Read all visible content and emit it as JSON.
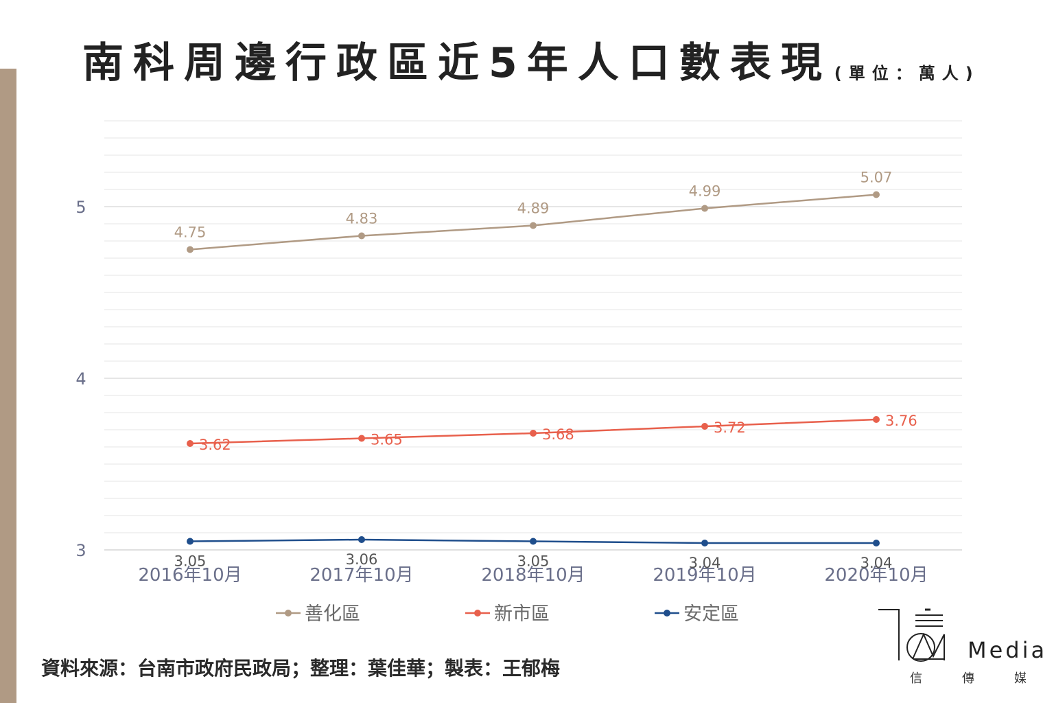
{
  "title": {
    "main": "南科周邊行政區近5年人口數表現",
    "unit": "(單位：萬人)"
  },
  "source": "資料來源：台南市政府民政局；整理：葉佳華；製表：王郁梅",
  "logo": {
    "text": "Media",
    "caption": [
      "信",
      "傳",
      "媒"
    ]
  },
  "colors": {
    "accent_bar": "#b09a84",
    "series": [
      "#b09a84",
      "#e8604c",
      "#1f4e8c"
    ],
    "grid": "#e6e6e6",
    "axis_text": "#6a6f8a"
  },
  "chart_data": {
    "type": "line",
    "categories": [
      "2016年10月",
      "2017年10月",
      "2018年10月",
      "2019年10月",
      "2020年10月"
    ],
    "series": [
      {
        "name": "善化區",
        "values": [
          4.75,
          4.83,
          4.89,
          4.99,
          5.07
        ]
      },
      {
        "name": "新市區",
        "values": [
          3.62,
          3.65,
          3.68,
          3.72,
          3.76
        ]
      },
      {
        "name": "安定區",
        "values": [
          3.05,
          3.06,
          3.05,
          3.04,
          3.04
        ]
      }
    ],
    "ylim": [
      3,
      5.5
    ],
    "yticks": [
      3,
      4,
      5
    ],
    "grid": true,
    "legend_position": "bottom",
    "data_labels": true
  }
}
